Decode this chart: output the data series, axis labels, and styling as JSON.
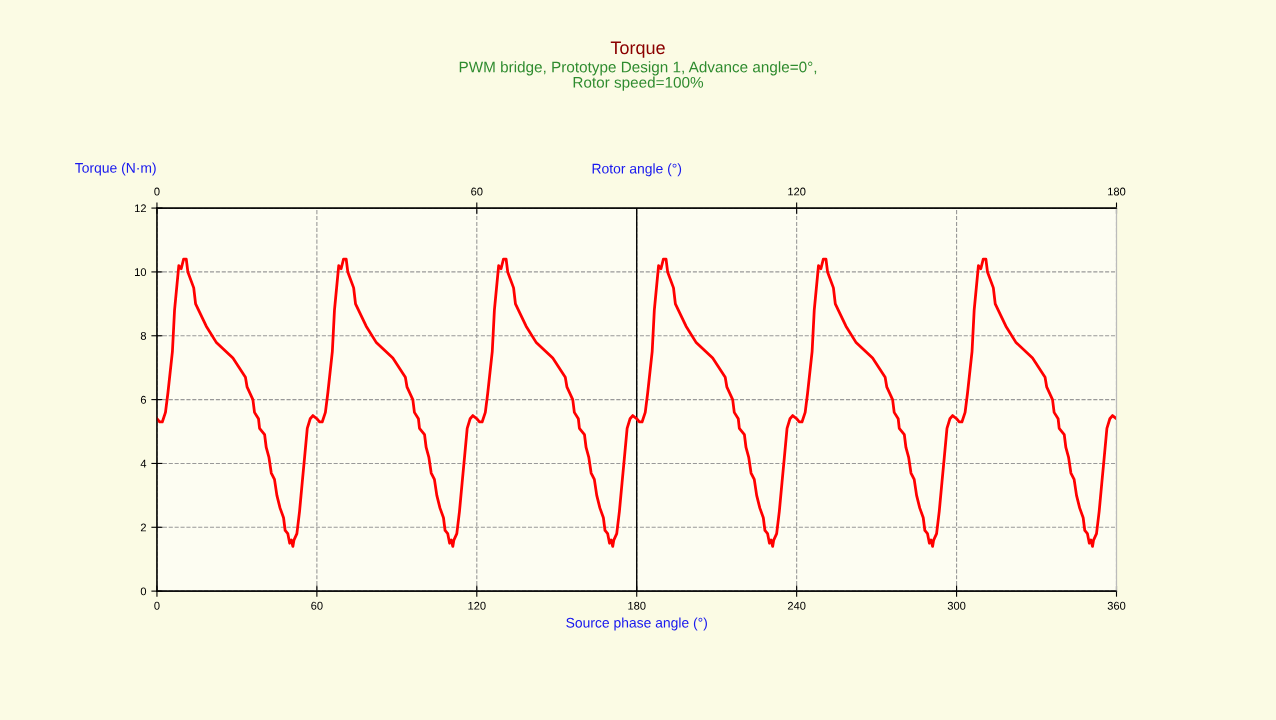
{
  "chart_data": {
    "type": "line",
    "title": "Torque",
    "subtitle": "PWM bridge, Prototype Design 1, Advance angle=0°,\nRotor speed=100%",
    "xlabel": "Source phase angle (°)",
    "x2label": "Rotor angle (°)",
    "ylabel": "Torque (N·m)",
    "xlim": [
      0,
      360
    ],
    "xticks": [
      0,
      60,
      120,
      180,
      240,
      300,
      360
    ],
    "x2lim": [
      0,
      180
    ],
    "x2ticks": [
      0,
      60,
      120,
      180
    ],
    "ylim": [
      0,
      12
    ],
    "yticks": [
      0,
      2,
      4,
      6,
      8,
      10,
      12
    ],
    "grid": true,
    "legend": false,
    "marker": "none",
    "line_style": "solid",
    "ref_lines": [
      {
        "axis": "x",
        "value": 180,
        "label": null,
        "color": "#000000"
      }
    ],
    "series": [
      {
        "color": "#ff0000",
        "x": [
          0,
          1,
          2,
          3.2,
          4.1,
          5.8,
          6.6,
          8.2,
          9.1,
          10,
          11,
          11.6,
          13.8,
          14.5,
          18.5,
          22.2,
          28.5,
          33.2,
          33.8,
          36,
          36.6,
          38.1,
          38.5,
          40.4,
          41,
          42,
          42.9,
          44.1,
          45,
          46.2,
          47.5,
          48.1,
          49.1,
          49.8,
          50.4,
          51,
          51.4,
          52.5,
          53.5,
          54.5,
          55.4,
          56.4,
          57.5,
          58.5,
          60,
          61,
          62,
          63.2,
          64.1,
          65.8,
          66.6,
          68.2,
          69.1,
          70,
          71,
          71.6,
          73.8,
          74.5,
          78.5,
          82.2,
          88.5,
          93.2,
          93.8,
          96,
          96.6,
          98.1,
          98.5,
          100.4,
          101,
          102,
          102.9,
          104.1,
          105,
          106.2,
          107.5,
          108.1,
          109.1,
          109.8,
          110.4,
          111,
          111.4,
          112.5,
          113.5,
          114.5,
          115.4,
          116.4,
          117.5,
          118.5,
          120,
          121,
          122,
          123.2,
          124.1,
          125.8,
          126.6,
          128.2,
          129.1,
          130,
          131,
          131.6,
          133.8,
          134.5,
          138.5,
          142.2,
          148.5,
          153.2,
          153.8,
          156,
          156.6,
          158.1,
          158.5,
          160.4,
          161,
          162,
          162.9,
          164.1,
          165,
          166.2,
          167.5,
          168.1,
          169.1,
          169.8,
          170.4,
          171,
          171.4,
          172.5,
          173.5,
          174.5,
          175.4,
          176.4,
          177.5,
          178.5,
          180,
          181,
          182,
          183.2,
          184.1,
          185.8,
          186.6,
          188.2,
          189.1,
          190,
          191,
          191.6,
          193.8,
          194.5,
          198.5,
          202.2,
          208.5,
          213.2,
          213.8,
          216,
          216.6,
          218.1,
          218.5,
          220.4,
          221,
          222,
          222.9,
          224.1,
          225,
          226.2,
          227.5,
          228.1,
          229.1,
          229.8,
          230.4,
          231,
          231.4,
          232.5,
          233.5,
          234.5,
          235.4,
          236.4,
          237.5,
          238.5,
          240,
          241,
          242,
          243.2,
          244.1,
          245.8,
          246.6,
          248.2,
          249.1,
          250,
          251,
          251.6,
          253.8,
          254.5,
          258.5,
          262.2,
          268.5,
          273.2,
          273.8,
          276,
          276.6,
          278.1,
          278.5,
          280.4,
          281,
          282,
          282.9,
          284.1,
          285,
          286.2,
          287.5,
          288.1,
          289.1,
          289.8,
          290.4,
          291,
          291.4,
          292.5,
          293.5,
          294.5,
          295.4,
          296.4,
          297.5,
          298.5,
          300,
          301,
          302,
          303.2,
          304.1,
          305.8,
          306.6,
          308.2,
          309.1,
          310,
          311,
          311.6,
          313.8,
          314.5,
          318.5,
          322.2,
          328.5,
          333.2,
          333.8,
          336,
          336.6,
          338.1,
          338.5,
          340.4,
          341,
          342,
          342.9,
          344.1,
          345,
          346.2,
          347.5,
          348.1,
          349.1,
          349.8,
          350.4,
          351,
          351.4,
          352.5,
          353.5,
          354.5,
          355.4,
          356.4,
          357.5,
          358.5,
          360
        ],
        "values": [
          5.4,
          5.3,
          5.3,
          5.6,
          6.2,
          7.5,
          8.8,
          10.2,
          10.1,
          10.4,
          10.4,
          10.0,
          9.5,
          9.0,
          8.3,
          7.8,
          7.3,
          6.7,
          6.4,
          6.0,
          5.6,
          5.4,
          5.1,
          4.9,
          4.5,
          4.2,
          3.7,
          3.5,
          3.0,
          2.6,
          2.3,
          1.9,
          1.8,
          1.5,
          1.6,
          1.4,
          1.6,
          1.8,
          2.5,
          3.4,
          4.2,
          5.1,
          5.4,
          5.5,
          5.4,
          5.3,
          5.3,
          5.6,
          6.2,
          7.5,
          8.8,
          10.2,
          10.1,
          10.4,
          10.4,
          10.0,
          9.5,
          9.0,
          8.3,
          7.8,
          7.3,
          6.7,
          6.4,
          6.0,
          5.6,
          5.4,
          5.1,
          4.9,
          4.5,
          4.2,
          3.7,
          3.5,
          3.0,
          2.6,
          2.3,
          1.9,
          1.8,
          1.5,
          1.6,
          1.4,
          1.6,
          1.8,
          2.5,
          3.4,
          4.2,
          5.1,
          5.4,
          5.5,
          5.4,
          5.3,
          5.3,
          5.6,
          6.2,
          7.5,
          8.8,
          10.2,
          10.1,
          10.4,
          10.4,
          10.0,
          9.5,
          9.0,
          8.3,
          7.8,
          7.3,
          6.7,
          6.4,
          6.0,
          5.6,
          5.4,
          5.1,
          4.9,
          4.5,
          4.2,
          3.7,
          3.5,
          3.0,
          2.6,
          2.3,
          1.9,
          1.8,
          1.5,
          1.6,
          1.4,
          1.6,
          1.8,
          2.5,
          3.4,
          4.2,
          5.1,
          5.4,
          5.5,
          5.4,
          5.3,
          5.3,
          5.6,
          6.2,
          7.5,
          8.8,
          10.2,
          10.1,
          10.4,
          10.4,
          10.0,
          9.5,
          9.0,
          8.3,
          7.8,
          7.3,
          6.7,
          6.4,
          6.0,
          5.6,
          5.4,
          5.1,
          4.9,
          4.5,
          4.2,
          3.7,
          3.5,
          3.0,
          2.6,
          2.3,
          1.9,
          1.8,
          1.5,
          1.6,
          1.4,
          1.6,
          1.8,
          2.5,
          3.4,
          4.2,
          5.1,
          5.4,
          5.5,
          5.4,
          5.3,
          5.3,
          5.6,
          6.2,
          7.5,
          8.8,
          10.2,
          10.1,
          10.4,
          10.4,
          10.0,
          9.5,
          9.0,
          8.3,
          7.8,
          7.3,
          6.7,
          6.4,
          6.0,
          5.6,
          5.4,
          5.1,
          4.9,
          4.5,
          4.2,
          3.7,
          3.5,
          3.0,
          2.6,
          2.3,
          1.9,
          1.8,
          1.5,
          1.6,
          1.4,
          1.6,
          1.8,
          2.5,
          3.4,
          4.2,
          5.1,
          5.4,
          5.5,
          5.4,
          5.3,
          5.3,
          5.6,
          6.2,
          7.5,
          8.8,
          10.2,
          10.1,
          10.4,
          10.4,
          10.0,
          9.5,
          9.0,
          8.3,
          7.8,
          7.3,
          6.7,
          6.4,
          6.0,
          5.6,
          5.4,
          5.1,
          4.9,
          4.5,
          4.2,
          3.7,
          3.5,
          3.0,
          2.6,
          2.3,
          1.9,
          1.8,
          1.5,
          1.6,
          1.4,
          1.6,
          1.8,
          2.5,
          3.4,
          4.2,
          5.1,
          5.4,
          5.5,
          5.4
        ]
      }
    ]
  }
}
